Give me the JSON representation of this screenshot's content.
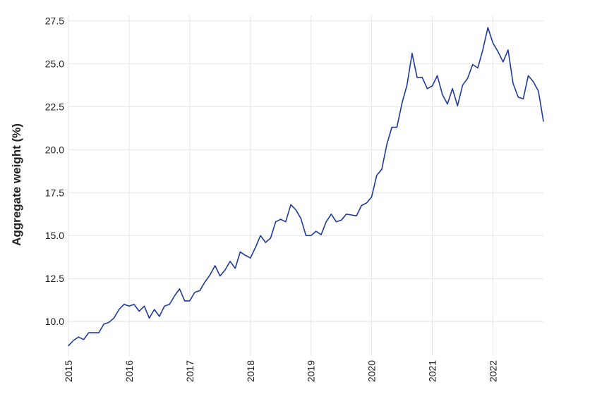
{
  "chart_data": {
    "type": "line",
    "title": "",
    "xlabel": "",
    "ylabel": "Aggregate weight (%)",
    "xlim": [
      2015.0,
      2022.833
    ],
    "ylim": [
      8.0,
      27.8
    ],
    "yticks": [
      10.0,
      12.5,
      15.0,
      17.5,
      20.0,
      22.5,
      25.0,
      27.5
    ],
    "ytick_labels": [
      "10.0",
      "12.5",
      "15.0",
      "17.5",
      "20.0",
      "22.5",
      "25.0",
      "27.5"
    ],
    "xticks": [
      2015,
      2016,
      2017,
      2018,
      2019,
      2020,
      2021,
      2022
    ],
    "xtick_labels": [
      "2015",
      "2016",
      "2017",
      "2018",
      "2019",
      "2020",
      "2021",
      "2022"
    ],
    "grid": true,
    "legend": "none",
    "colors": {
      "line": "#1f3a9b",
      "grid": "#e6e6e6",
      "text": "#222222"
    },
    "series": [
      {
        "x": [
          2015.0,
          2015.083,
          2015.167,
          2015.25,
          2015.333,
          2015.417,
          2015.5,
          2015.583,
          2015.667,
          2015.75,
          2015.833,
          2015.917,
          2016.0,
          2016.083,
          2016.167,
          2016.25,
          2016.333,
          2016.417,
          2016.5,
          2016.583,
          2016.667,
          2016.75,
          2016.833,
          2016.917,
          2017.0,
          2017.083,
          2017.167,
          2017.25,
          2017.333,
          2017.417,
          2017.5,
          2017.583,
          2017.667,
          2017.75,
          2017.833,
          2017.917,
          2018.0,
          2018.083,
          2018.167,
          2018.25,
          2018.333,
          2018.417,
          2018.5,
          2018.583,
          2018.667,
          2018.75,
          2018.833,
          2018.917,
          2019.0,
          2019.083,
          2019.167,
          2019.25,
          2019.333,
          2019.417,
          2019.5,
          2019.583,
          2019.667,
          2019.75,
          2019.833,
          2019.917,
          2020.0,
          2020.083,
          2020.167,
          2020.25,
          2020.333,
          2020.417,
          2020.5,
          2020.583,
          2020.667,
          2020.75,
          2020.833,
          2020.917,
          2021.0,
          2021.083,
          2021.167,
          2021.25,
          2021.333,
          2021.417,
          2021.5,
          2021.583,
          2021.667,
          2021.75,
          2021.833,
          2021.917,
          2022.0,
          2022.083,
          2022.167,
          2022.25,
          2022.333,
          2022.417,
          2022.5,
          2022.583,
          2022.667,
          2022.75,
          2022.833
        ],
        "y": [
          8.6,
          8.9,
          9.1,
          8.95,
          9.35,
          9.35,
          9.35,
          9.85,
          9.95,
          10.2,
          10.7,
          11.0,
          10.9,
          11.0,
          10.6,
          10.9,
          10.2,
          10.7,
          10.3,
          10.9,
          11.0,
          11.5,
          11.9,
          11.2,
          11.2,
          11.7,
          11.8,
          12.3,
          12.7,
          13.25,
          12.65,
          13.0,
          13.5,
          13.1,
          14.05,
          13.85,
          13.7,
          14.3,
          15.0,
          14.6,
          14.85,
          15.8,
          15.95,
          15.8,
          16.8,
          16.5,
          16.0,
          15.0,
          15.0,
          15.25,
          15.05,
          15.8,
          16.25,
          15.8,
          15.9,
          16.25,
          16.2,
          16.15,
          16.75,
          16.9,
          17.25,
          18.5,
          18.85,
          20.3,
          21.3,
          21.3,
          22.7,
          23.75,
          25.6,
          24.2,
          24.2,
          23.55,
          23.7,
          24.3,
          23.2,
          22.65,
          23.55,
          22.55,
          23.75,
          24.15,
          24.95,
          24.75,
          25.8,
          27.1,
          26.2,
          25.7,
          25.1,
          25.8,
          23.85,
          23.05,
          22.95,
          24.3,
          23.95,
          23.4,
          21.65
        ]
      }
    ]
  }
}
